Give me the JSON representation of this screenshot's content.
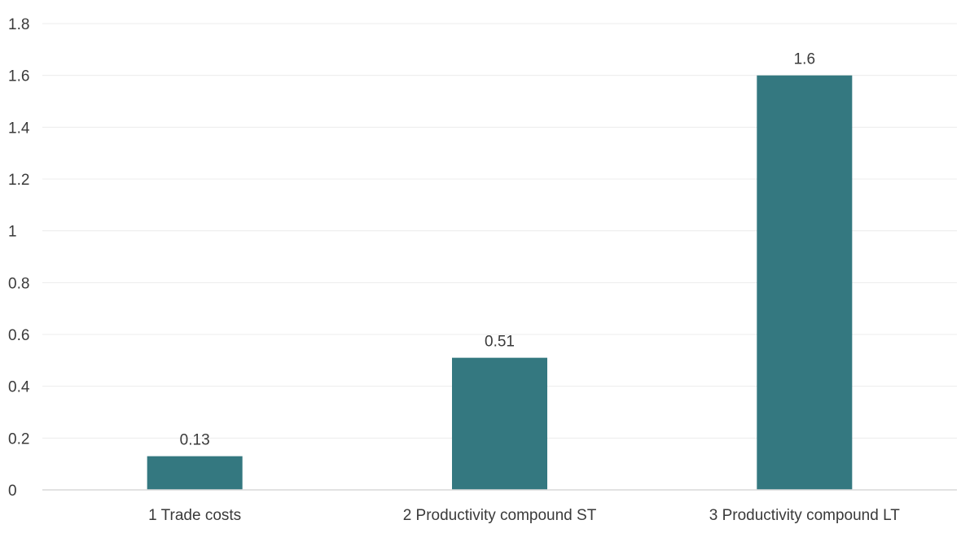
{
  "chart_data": {
    "type": "bar",
    "title": "",
    "xlabel": "",
    "ylabel": "",
    "categories": [
      "1 Trade costs",
      "2 Productivity compound ST",
      "3 Productivity compound LT"
    ],
    "values": [
      0.13,
      0.51,
      1.6
    ],
    "data_labels": [
      "0.13",
      "0.51",
      "1.6"
    ],
    "ylim": [
      0,
      1.8
    ],
    "yticks": [
      0,
      0.2,
      0.4,
      0.6,
      0.8,
      1.0,
      1.2,
      1.4,
      1.6,
      1.8
    ],
    "ytick_labels": [
      "0",
      "0.2",
      "0.4",
      "0.6",
      "0.8",
      "1",
      "1.2",
      "1.4",
      "1.6",
      "1.8"
    ],
    "grid": true,
    "legend": "none",
    "bar_color": "#347880"
  }
}
